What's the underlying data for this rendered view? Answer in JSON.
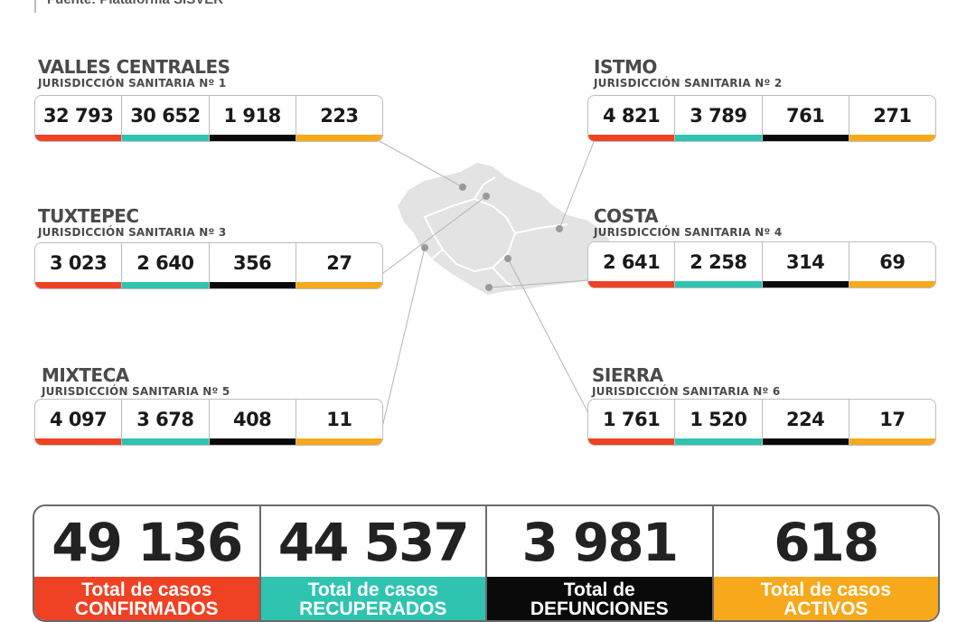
{
  "source_label": "Fuente: Plataforma SISVER",
  "colors": {
    "confirmados": "#ef4123",
    "recuperados": "#2ec4b0",
    "defunciones": "#0a0a0a",
    "activos": "#f7a81b"
  },
  "regions": [
    {
      "name": "VALLES CENTRALES",
      "jurisdiction": "JURISDICCIÓN SANITARIA Nº 1",
      "values": [
        "32 793",
        "30 652",
        "1 918",
        "223"
      ]
    },
    {
      "name": "ISTMO",
      "jurisdiction": "JURISDICCIÓN SANITARIA Nº 2",
      "values": [
        "4 821",
        "3 789",
        "761",
        "271"
      ]
    },
    {
      "name": "TUXTEPEC",
      "jurisdiction": "JURISDICCIÓN SANITARIA Nº 3",
      "values": [
        "3 023",
        "2 640",
        "356",
        "27"
      ]
    },
    {
      "name": "COSTA",
      "jurisdiction": "JURISDICCIÓN SANITARIA Nº 4",
      "values": [
        "2 641",
        "2 258",
        "314",
        "69"
      ]
    },
    {
      "name": "MIXTECA",
      "jurisdiction": "JURISDICCIÓN SANITARIA Nº 5",
      "values": [
        "4 097",
        "3 678",
        "408",
        "11"
      ]
    },
    {
      "name": "SIERRA",
      "jurisdiction": "JURISDICCIÓN SANITARIA Nº 6",
      "values": [
        "1 761",
        "1 520",
        "224",
        "17"
      ]
    }
  ],
  "totals": [
    {
      "value": "49 136",
      "line1": "Total de casos",
      "line2": "CONFIRMADOS"
    },
    {
      "value": "44 537",
      "line1": "Total de casos",
      "line2": "RECUPERADOS"
    },
    {
      "value": "3 981",
      "line1": "Total de",
      "line2": "DEFUNCIONES"
    },
    {
      "value": "618",
      "line1": "Total de casos",
      "line2": "ACTIVOS"
    }
  ]
}
